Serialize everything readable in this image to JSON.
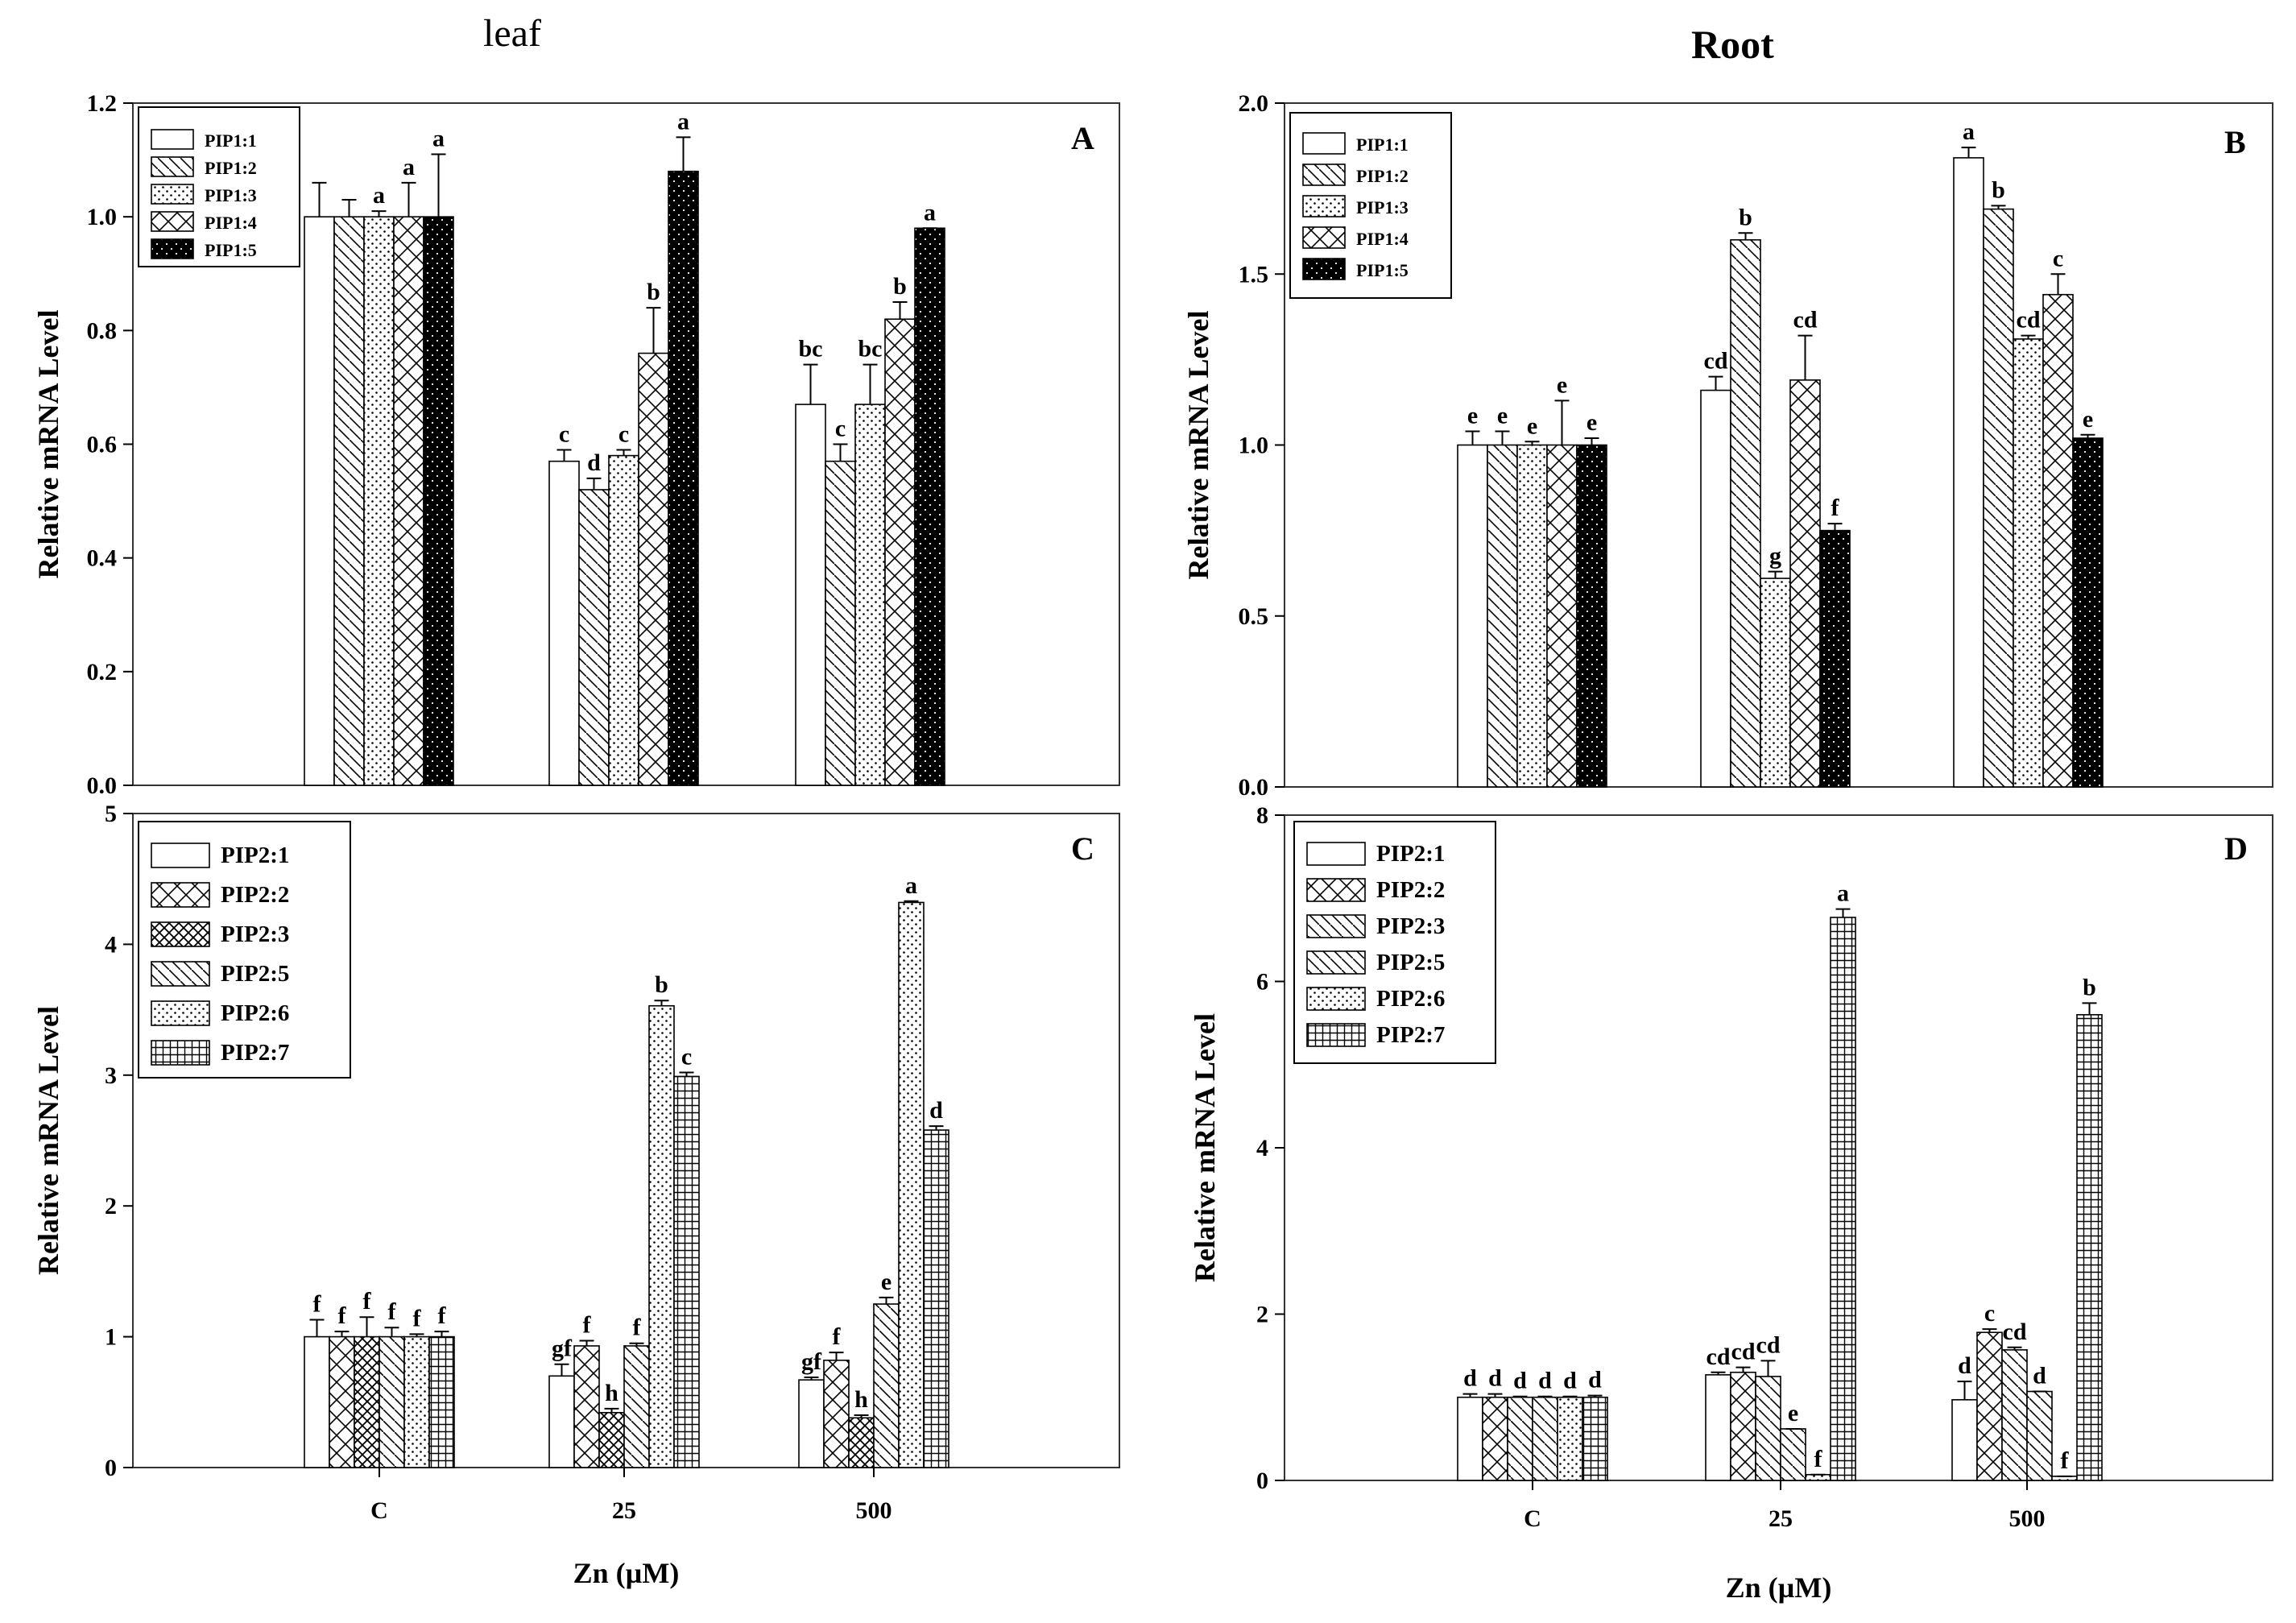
{
  "titles": {
    "leaf": "leaf",
    "root": "Root"
  },
  "colors": {
    "ink": "#000000",
    "paper": "#ffffff"
  },
  "chart_data": [
    {
      "id": "A",
      "type": "bar",
      "panel_label": "A",
      "categories": [
        "C",
        "25",
        "500"
      ],
      "show_x_ticks": false,
      "xlabel": "",
      "ylabel": "Relative mRNA Level",
      "ylim": [
        0,
        1.2
      ],
      "yticks": [
        "0.0",
        "0.2",
        "0.4",
        "0.6",
        "0.8",
        "1.0",
        "1.2"
      ],
      "legend_position": "top-left",
      "grid": false,
      "series": [
        {
          "name": "PIP1:1",
          "pattern": "empty",
          "values": [
            1.0,
            0.57,
            0.67
          ],
          "errors": [
            0.06,
            0.02,
            0.07
          ],
          "letters": [
            "",
            "c",
            "bc"
          ]
        },
        {
          "name": "PIP1:2",
          "pattern": "hatch-d",
          "values": [
            1.0,
            0.52,
            0.57
          ],
          "errors": [
            0.03,
            0.02,
            0.03
          ],
          "letters": [
            "",
            "d",
            "c"
          ]
        },
        {
          "name": "PIP1:3",
          "pattern": "dots",
          "values": [
            1.0,
            0.58,
            0.67
          ],
          "errors": [
            0.01,
            0.01,
            0.07
          ],
          "letters": [
            "a",
            "c",
            "bc"
          ]
        },
        {
          "name": "PIP1:4",
          "pattern": "cross-x",
          "values": [
            1.0,
            0.76,
            0.82
          ],
          "errors": [
            0.06,
            0.08,
            0.03
          ],
          "letters": [
            "a",
            "b",
            "b"
          ]
        },
        {
          "name": "PIP1:5",
          "pattern": "black",
          "values": [
            1.0,
            1.08,
            0.98
          ],
          "errors": [
            0.11,
            0.06,
            0.0
          ],
          "letters": [
            "a",
            "a",
            "a"
          ]
        }
      ]
    },
    {
      "id": "B",
      "type": "bar",
      "panel_label": "B",
      "categories": [
        "C",
        "25",
        "500"
      ],
      "show_x_ticks": false,
      "xlabel": "",
      "ylabel": "Relative mRNA Level",
      "ylim": [
        0,
        2.0
      ],
      "yticks": [
        "0.0",
        "0.5",
        "1.0",
        "1.5",
        "2.0"
      ],
      "legend_position": "top-left",
      "grid": false,
      "series": [
        {
          "name": "PIP1:1",
          "pattern": "empty",
          "values": [
            1.0,
            1.16,
            1.84
          ],
          "errors": [
            0.04,
            0.04,
            0.03
          ],
          "letters": [
            "e",
            "cd",
            "a"
          ]
        },
        {
          "name": "PIP1:2",
          "pattern": "hatch-d",
          "values": [
            1.0,
            1.6,
            1.69
          ],
          "errors": [
            0.04,
            0.02,
            0.01
          ],
          "letters": [
            "e",
            "b",
            "b"
          ]
        },
        {
          "name": "PIP1:3",
          "pattern": "dots",
          "values": [
            1.0,
            0.61,
            1.31
          ],
          "errors": [
            0.01,
            0.02,
            0.01
          ],
          "letters": [
            "e",
            "g",
            "cd"
          ]
        },
        {
          "name": "PIP1:4",
          "pattern": "cross-x",
          "values": [
            1.0,
            1.19,
            1.44
          ],
          "errors": [
            0.13,
            0.13,
            0.06
          ],
          "letters": [
            "e",
            "cd",
            "c"
          ]
        },
        {
          "name": "PIP1:5",
          "pattern": "black",
          "values": [
            1.0,
            0.75,
            1.02
          ],
          "errors": [
            0.02,
            0.02,
            0.01
          ],
          "letters": [
            "e",
            "f",
            "e"
          ]
        }
      ]
    },
    {
      "id": "C",
      "type": "bar",
      "panel_label": "C",
      "categories": [
        "C",
        "25",
        "500"
      ],
      "show_x_ticks": true,
      "xlabel": "Zn (µM)",
      "ylabel": "Relative mRNA Level",
      "ylim": [
        0,
        5
      ],
      "yticks": [
        "0",
        "1",
        "2",
        "3",
        "4",
        "5"
      ],
      "legend_position": "top-left",
      "grid": false,
      "series": [
        {
          "name": "PIP2:1",
          "pattern": "empty",
          "values": [
            1.0,
            0.7,
            0.67
          ],
          "errors": [
            0.13,
            0.09,
            0.02
          ],
          "letters": [
            "f",
            "gf",
            "gf"
          ]
        },
        {
          "name": "PIP2:2",
          "pattern": "cross-x",
          "values": [
            1.0,
            0.93,
            0.82
          ],
          "errors": [
            0.04,
            0.04,
            0.06
          ],
          "letters": [
            "f",
            "f",
            "f"
          ]
        },
        {
          "name": "PIP2:3",
          "pattern": "cross-s",
          "values": [
            1.0,
            0.42,
            0.38
          ],
          "errors": [
            0.15,
            0.03,
            0.02
          ],
          "letters": [
            "f",
            "h",
            "h"
          ]
        },
        {
          "name": "PIP2:5",
          "pattern": "hatch-d",
          "values": [
            1.0,
            0.93,
            1.25
          ],
          "errors": [
            0.07,
            0.02,
            0.05
          ],
          "letters": [
            "f",
            "f",
            "e"
          ]
        },
        {
          "name": "PIP2:6",
          "pattern": "dots",
          "values": [
            1.0,
            3.53,
            4.32
          ],
          "errors": [
            0.02,
            0.04,
            0.01
          ],
          "letters": [
            "f",
            "b",
            "a"
          ]
        },
        {
          "name": "PIP2:7",
          "pattern": "grid",
          "values": [
            1.0,
            2.99,
            2.58
          ],
          "errors": [
            0.04,
            0.03,
            0.03
          ],
          "letters": [
            "f",
            "c",
            "d"
          ]
        }
      ]
    },
    {
      "id": "D",
      "type": "bar",
      "panel_label": "D",
      "categories": [
        "C",
        "25",
        "500"
      ],
      "show_x_ticks": true,
      "xlabel": "Zn (µM)",
      "ylabel": "Relative mRNA Level",
      "ylim": [
        0,
        8
      ],
      "yticks": [
        "0",
        "2",
        "4",
        "6",
        "8"
      ],
      "legend_position": "top-left",
      "grid": false,
      "series": [
        {
          "name": "PIP2:1",
          "pattern": "empty",
          "values": [
            1.0,
            1.27,
            0.97
          ],
          "errors": [
            0.04,
            0.03,
            0.22
          ],
          "letters": [
            "d",
            "cd",
            "d"
          ]
        },
        {
          "name": "PIP2:2",
          "pattern": "cross-x",
          "values": [
            1.0,
            1.3,
            1.78
          ],
          "errors": [
            0.04,
            0.06,
            0.04
          ],
          "letters": [
            "d",
            "cd",
            "c"
          ]
        },
        {
          "name": "PIP2:3",
          "pattern": "hatch-d",
          "values": [
            1.0,
            1.25,
            1.57
          ],
          "errors": [
            0.01,
            0.19,
            0.03
          ],
          "letters": [
            "d",
            "cd",
            "cd"
          ]
        },
        {
          "name": "PIP2:5",
          "pattern": "hatch-d",
          "values": [
            1.0,
            0.62,
            1.07
          ],
          "errors": [
            0.01,
            0.0,
            0.0
          ],
          "letters": [
            "d",
            "e",
            "d"
          ]
        },
        {
          "name": "PIP2:6",
          "pattern": "dots",
          "values": [
            1.0,
            0.07,
            0.05
          ],
          "errors": [
            0.01,
            0.0,
            0.0
          ],
          "letters": [
            "d",
            "f",
            "f"
          ]
        },
        {
          "name": "PIP2:7",
          "pattern": "grid",
          "values": [
            1.0,
            6.77,
            5.6
          ],
          "errors": [
            0.02,
            0.1,
            0.14
          ],
          "letters": [
            "d",
            "a",
            "b"
          ]
        }
      ]
    }
  ]
}
